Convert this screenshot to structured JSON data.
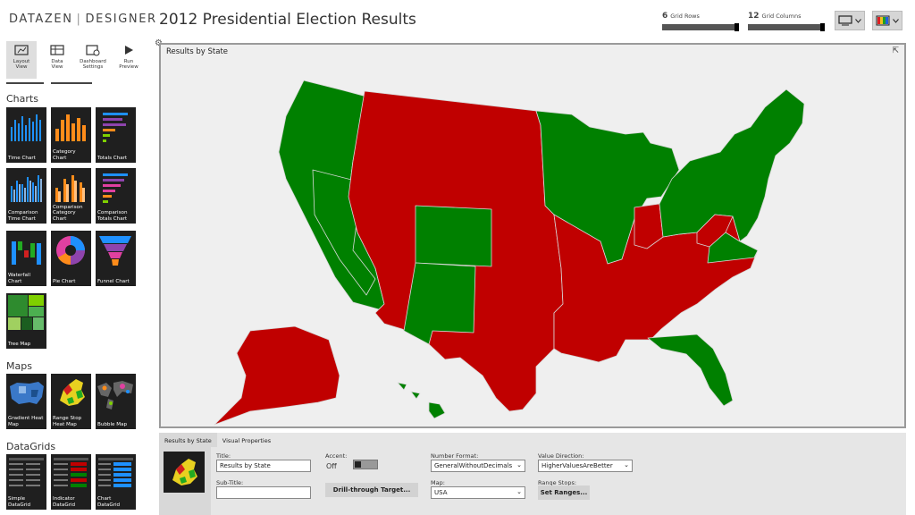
{
  "app": {
    "logo_left": "DATAZEN",
    "logo_right": "DESIGNER",
    "title": "2012 Presidential Election Results"
  },
  "toolbar": [
    {
      "label1": "Layout",
      "label2": "View",
      "icon": "layout-view-icon"
    },
    {
      "label1": "Data",
      "label2": "View",
      "icon": "data-view-icon"
    },
    {
      "label1": "Dashboard",
      "label2": "Settings",
      "icon": "dashboard-settings-icon"
    },
    {
      "label1": "Run",
      "label2": "Preview",
      "icon": "run-preview-icon"
    }
  ],
  "sidebar": {
    "charts_heading": "Charts",
    "charts": [
      {
        "l1": "Time Chart",
        "l2": ""
      },
      {
        "l1": "Category Chart",
        "l2": ""
      },
      {
        "l1": "Totals Chart",
        "l2": ""
      },
      {
        "l1": "Comparison",
        "l2": "Time Chart"
      },
      {
        "l1": "Comparison",
        "l2": "Category Chart"
      },
      {
        "l1": "Comparison",
        "l2": "Totals Chart"
      },
      {
        "l1": "Waterfall Chart",
        "l2": ""
      },
      {
        "l1": "Pie Chart",
        "l2": ""
      },
      {
        "l1": "Funnel Chart",
        "l2": ""
      },
      {
        "l1": "Tree Map",
        "l2": ""
      }
    ],
    "maps_heading": "Maps",
    "maps": [
      {
        "l1": "Gradient Heat",
        "l2": "Map"
      },
      {
        "l1": "Range Stop",
        "l2": "Heat Map"
      },
      {
        "l1": "Bubble Map",
        "l2": ""
      }
    ],
    "datagrids_heading": "DataGrids",
    "datagrids": [
      {
        "l1": "Simple",
        "l2": "DataGrid"
      },
      {
        "l1": "Indicator",
        "l2": "DataGrid"
      },
      {
        "l1": "Chart DataGrid",
        "l2": ""
      }
    ]
  },
  "grid": {
    "rows_value": "6",
    "rows_label": "Grid Rows",
    "cols_value": "12",
    "cols_label": "Grid Columns"
  },
  "panel": {
    "title": "Results by State"
  },
  "colors": {
    "red": "#c00000",
    "green": "#008000"
  },
  "properties": {
    "tabs": [
      "Results by State",
      "Visual Properties"
    ],
    "title_label": "Title:",
    "title_value": "Results by State",
    "subtitle_label": "Sub-Title:",
    "subtitle_value": "",
    "accent_label": "Accent:",
    "accent_value": "Off",
    "drill_button": "Drill-through Target...",
    "number_format_label": "Number Format:",
    "number_format_value": "GeneralWithoutDecimals",
    "map_label": "Map:",
    "map_value": "USA",
    "value_direction_label": "Value Direction:",
    "value_direction_value": "HigherValuesAreBetter",
    "range_stops_label": "Range Stops:",
    "range_button": "Set Ranges..."
  }
}
